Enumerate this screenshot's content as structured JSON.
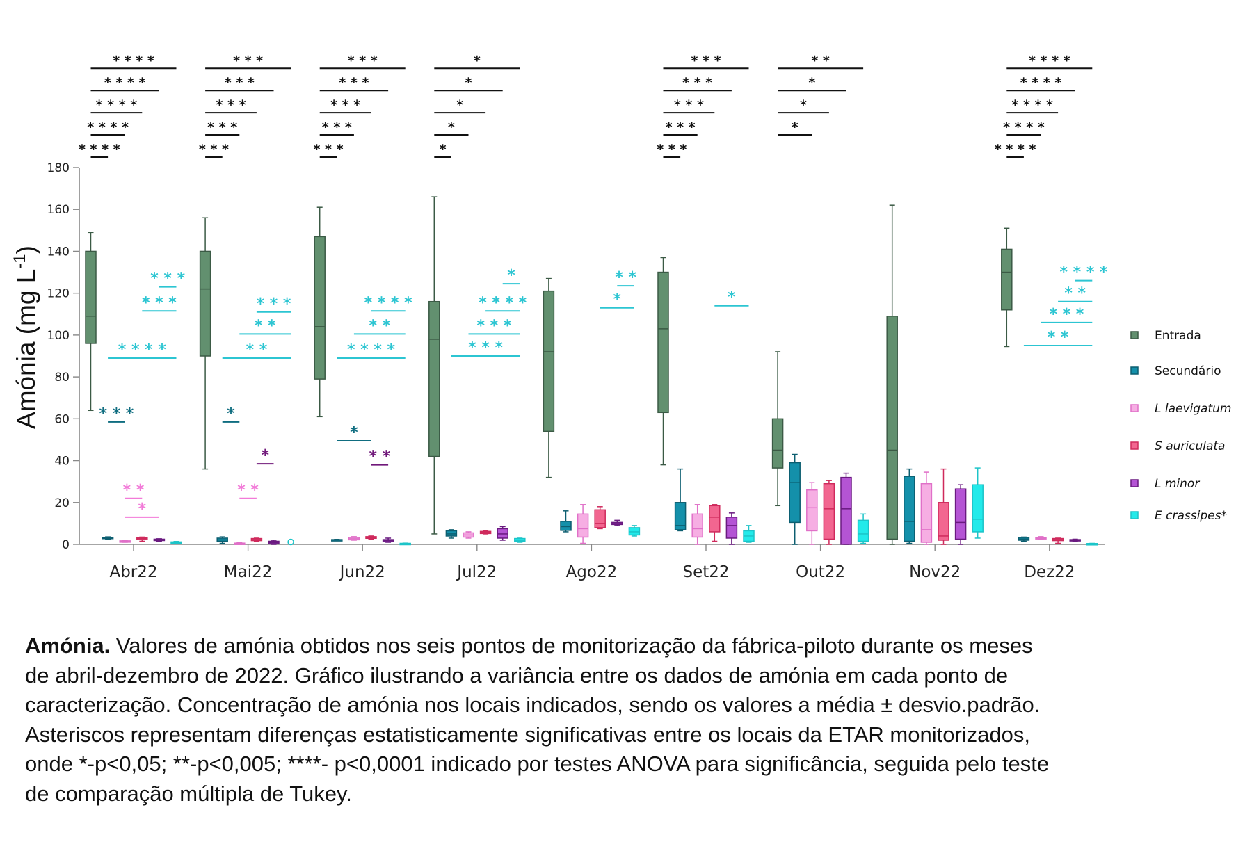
{
  "chart_data": {
    "type": "box",
    "title": "",
    "ylabel_main": "Amónia (mg L",
    "ylabel_sup": "-1",
    "ylabel_close": ")",
    "xlabel": "",
    "ylim": [
      0,
      180
    ],
    "yticks": [
      0,
      20,
      40,
      60,
      80,
      100,
      120,
      140,
      160,
      180
    ],
    "categories": [
      "Abr22",
      "Mai22",
      "Jun22",
      "Jul22",
      "Ago22",
      "Set22",
      "Out22",
      "Nov22",
      "Dez22"
    ],
    "legend_position": "right",
    "series": [
      {
        "name": "Entrada",
        "italic": false,
        "color": "#62906f",
        "stroke": "#3b5a45",
        "boxes": [
          [
            64,
            96,
            109,
            140,
            149
          ],
          [
            36,
            90,
            122,
            140,
            156
          ],
          [
            61,
            79,
            104,
            147,
            161
          ],
          [
            5,
            42,
            98,
            116,
            166
          ],
          [
            32,
            54,
            92,
            121,
            127
          ],
          [
            38,
            63,
            103,
            130,
            137
          ],
          [
            18.5,
            36.5,
            45,
            60,
            92
          ],
          [
            0,
            2.5,
            45,
            109,
            162
          ],
          [
            94.5,
            112,
            130,
            141,
            151
          ]
        ]
      },
      {
        "name": "Secundário",
        "italic": false,
        "color": "#1490aa",
        "stroke": "#0c5e70",
        "boxes": [
          [
            2.5,
            2.8,
            3,
            3.4,
            3.6
          ],
          [
            0.5,
            1.5,
            2.2,
            3,
            3.6
          ],
          [
            2,
            2.1,
            2.2,
            2.3,
            2.4
          ],
          [
            3,
            4,
            5,
            6.5,
            7
          ],
          [
            6,
            6.7,
            8.5,
            11,
            16
          ],
          [
            6.5,
            7,
            9,
            20,
            36
          ],
          [
            0,
            10.5,
            29.5,
            39,
            43
          ],
          [
            0.5,
            1.5,
            11,
            32.5,
            36
          ],
          [
            1.5,
            2,
            2.6,
            3.3,
            3.5
          ]
        ]
      },
      {
        "name": "L laevigatum",
        "italic": true,
        "color": "#f6aee3",
        "stroke": "#e070c8",
        "boxes": [
          [
            1,
            1.2,
            1.5,
            1.7,
            1.8
          ],
          [
            0,
            0.2,
            0.4,
            0.6,
            0.8
          ],
          [
            2,
            2.2,
            2.7,
            3.3,
            3.7
          ],
          [
            3,
            3.5,
            4.5,
            5.5,
            6
          ],
          [
            0.5,
            3.5,
            7.5,
            14.5,
            19
          ],
          [
            0,
            3.5,
            7.5,
            14.5,
            19
          ],
          [
            0,
            6.5,
            17.5,
            26,
            29.5
          ],
          [
            0,
            1,
            7,
            29,
            34.5
          ],
          [
            2.3,
            2.6,
            3,
            3.4,
            3.7
          ]
        ]
      },
      {
        "name": "S auriculata",
        "italic": true,
        "color": "#f26690",
        "stroke": "#cf2a5c",
        "boxes": [
          [
            1.5,
            2.3,
            2.8,
            3.2,
            3.5
          ],
          [
            1.5,
            1.8,
            2.3,
            2.8,
            3
          ],
          [
            2.5,
            2.9,
            3.3,
            3.7,
            4
          ],
          [
            5,
            5.2,
            5.8,
            6.2,
            6.5
          ],
          [
            7.5,
            8,
            10,
            16.5,
            18
          ],
          [
            1.5,
            6,
            13,
            18.5,
            19
          ],
          [
            0,
            2.5,
            17,
            29,
            30.5
          ],
          [
            0,
            2,
            4,
            20,
            36
          ],
          [
            0.5,
            1.8,
            2.3,
            2.8,
            3
          ]
        ]
      },
      {
        "name": "L minor",
        "italic": true,
        "color": "#b454d4",
        "stroke": "#6a1a80",
        "boxes": [
          [
            1.5,
            1.9,
            2.2,
            2.5,
            2.7
          ],
          [
            0,
            0.3,
            0.8,
            1.5,
            2
          ],
          [
            1,
            1.3,
            1.8,
            2.3,
            3
          ],
          [
            2,
            3,
            5,
            7.5,
            8.5
          ],
          [
            9,
            9.5,
            10,
            10.5,
            11.5
          ],
          [
            0,
            3,
            9,
            13,
            15
          ],
          [
            0,
            0,
            17,
            32,
            34
          ],
          [
            0,
            2.5,
            10.5,
            26.5,
            28.5
          ],
          [
            1.3,
            1.7,
            2,
            2.3,
            2.5
          ]
        ]
      },
      {
        "name": "E crassipes*",
        "italic": true,
        "color": "#22eaea",
        "stroke": "#1cc4c8",
        "boxes": [
          [
            0.3,
            0.6,
            0.9,
            1.2,
            1.4
          ],
          null,
          [
            0.2,
            0.3,
            0.4,
            0.5,
            0.6
          ],
          [
            1,
            1.5,
            2,
            2.8,
            3
          ],
          [
            4,
            4.5,
            6,
            8,
            9
          ],
          [
            1,
            1.5,
            4,
            6.5,
            9
          ],
          [
            0.5,
            1.5,
            5,
            11.5,
            14.5
          ],
          [
            3,
            6,
            12,
            28.5,
            36.5
          ],
          [
            0.1,
            0.2,
            0.3,
            0.4,
            0.5
          ]
        ]
      }
    ],
    "outliers": [
      {
        "series": 5,
        "month": 1,
        "value": 0.5
      }
    ],
    "sig_colors": {
      "black": "#111111",
      "teal": "#0f6d80",
      "cyan": "#2cc5d2",
      "pink": "#f27ad8",
      "purple": "#70187a"
    },
    "significance_vs_entrada": [
      {
        "month": 0,
        "to": 1,
        "level": 1,
        "label": "****"
      },
      {
        "month": 0,
        "to": 2,
        "level": 2,
        "label": "****"
      },
      {
        "month": 0,
        "to": 3,
        "level": 3,
        "label": "****"
      },
      {
        "month": 0,
        "to": 4,
        "level": 4,
        "label": "****"
      },
      {
        "month": 0,
        "to": 5,
        "level": 5,
        "label": "****"
      },
      {
        "month": 1,
        "to": 1,
        "level": 1,
        "label": "***"
      },
      {
        "month": 1,
        "to": 2,
        "level": 2,
        "label": "***"
      },
      {
        "month": 1,
        "to": 3,
        "level": 3,
        "label": "***"
      },
      {
        "month": 1,
        "to": 4,
        "level": 4,
        "label": "***"
      },
      {
        "month": 1,
        "to": 5,
        "level": 5,
        "label": "***"
      },
      {
        "month": 2,
        "to": 1,
        "level": 1,
        "label": "***"
      },
      {
        "month": 2,
        "to": 2,
        "level": 2,
        "label": "***"
      },
      {
        "month": 2,
        "to": 3,
        "level": 3,
        "label": "***"
      },
      {
        "month": 2,
        "to": 4,
        "level": 4,
        "label": "***"
      },
      {
        "month": 2,
        "to": 5,
        "level": 5,
        "label": "***"
      },
      {
        "month": 3,
        "to": 1,
        "level": 1,
        "label": "*"
      },
      {
        "month": 3,
        "to": 2,
        "level": 2,
        "label": "*"
      },
      {
        "month": 3,
        "to": 3,
        "level": 3,
        "label": "*"
      },
      {
        "month": 3,
        "to": 4,
        "level": 4,
        "label": "*"
      },
      {
        "month": 3,
        "to": 5,
        "level": 5,
        "label": "*"
      },
      {
        "month": 5,
        "to": 1,
        "level": 1,
        "label": "***"
      },
      {
        "month": 5,
        "to": 2,
        "level": 2,
        "label": "***"
      },
      {
        "month": 5,
        "to": 3,
        "level": 3,
        "label": "***"
      },
      {
        "month": 5,
        "to": 4,
        "level": 4,
        "label": "***"
      },
      {
        "month": 5,
        "to": 5,
        "level": 5,
        "label": "***"
      },
      {
        "month": 6,
        "to": 2,
        "level": 2,
        "label": "*"
      },
      {
        "month": 6,
        "to": 3,
        "level": 3,
        "label": "*"
      },
      {
        "month": 6,
        "to": 4,
        "level": 4,
        "label": "*"
      },
      {
        "month": 6,
        "to": 5,
        "level": 5,
        "label": "**"
      },
      {
        "month": 8,
        "to": 1,
        "level": 1,
        "label": "****"
      },
      {
        "month": 8,
        "to": 2,
        "level": 2,
        "label": "****"
      },
      {
        "month": 8,
        "to": 3,
        "level": 3,
        "label": "****"
      },
      {
        "month": 8,
        "to": 4,
        "level": 4,
        "label": "****"
      },
      {
        "month": 8,
        "to": 5,
        "level": 5,
        "label": "****"
      }
    ],
    "significance_other": [
      {
        "month": 0,
        "from": 1,
        "to": 2,
        "y": 58.5,
        "label": "***",
        "color": "teal"
      },
      {
        "month": 0,
        "from": 1,
        "to": 5,
        "y": 89,
        "label": "****",
        "color": "cyan"
      },
      {
        "month": 0,
        "from": 3,
        "to": 5,
        "y": 111.5,
        "label": "***",
        "color": "cyan"
      },
      {
        "month": 0,
        "from": 4,
        "to": 5,
        "y": 123,
        "label": "***",
        "color": "cyan"
      },
      {
        "month": 0,
        "from": 2,
        "to": 3,
        "y": 22,
        "label": "**",
        "color": "pink"
      },
      {
        "month": 0,
        "from": 2,
        "to": 4,
        "y": 13,
        "label": "*",
        "color": "pink"
      },
      {
        "month": 1,
        "from": 1,
        "to": 2,
        "y": 58.5,
        "label": "*",
        "color": "teal"
      },
      {
        "month": 1,
        "from": 1,
        "to": 5,
        "y": 89,
        "label": "**",
        "color": "cyan"
      },
      {
        "month": 1,
        "from": 2,
        "to": 5,
        "y": 100.5,
        "label": "**",
        "color": "cyan"
      },
      {
        "month": 1,
        "from": 3,
        "to": 5,
        "y": 111,
        "label": "***",
        "color": "cyan"
      },
      {
        "month": 1,
        "from": 3,
        "to": 4,
        "y": 38.5,
        "label": "*",
        "color": "purple"
      },
      {
        "month": 1,
        "from": 2,
        "to": 3,
        "y": 22,
        "label": "**",
        "color": "pink"
      },
      {
        "month": 2,
        "from": 1,
        "to": 3,
        "y": 49.5,
        "label": "*",
        "color": "teal"
      },
      {
        "month": 2,
        "from": 1,
        "to": 5,
        "y": 89,
        "label": "****",
        "color": "cyan"
      },
      {
        "month": 2,
        "from": 2,
        "to": 5,
        "y": 100.5,
        "label": "**",
        "color": "cyan"
      },
      {
        "month": 2,
        "from": 3,
        "to": 5,
        "y": 111.5,
        "label": "****",
        "color": "cyan"
      },
      {
        "month": 2,
        "from": 3,
        "to": 4,
        "y": 38,
        "label": "**",
        "color": "purple"
      },
      {
        "month": 3,
        "from": 1,
        "to": 5,
        "y": 90,
        "label": "***",
        "color": "cyan"
      },
      {
        "month": 3,
        "from": 2,
        "to": 5,
        "y": 100.5,
        "label": "***",
        "color": "cyan"
      },
      {
        "month": 3,
        "from": 3,
        "to": 5,
        "y": 111.5,
        "label": "****",
        "color": "cyan"
      },
      {
        "month": 3,
        "from": 4,
        "to": 5,
        "y": 124.5,
        "label": "*",
        "color": "cyan"
      },
      {
        "month": 4,
        "from": 3,
        "to": 5,
        "y": 113,
        "label": "*",
        "color": "cyan"
      },
      {
        "month": 4,
        "from": 4,
        "to": 5,
        "y": 123.5,
        "label": "**",
        "color": "cyan"
      },
      {
        "month": 5,
        "from": 3,
        "to": 5,
        "y": 114,
        "label": "*",
        "color": "cyan"
      },
      {
        "month": 8,
        "from": 1,
        "to": 5,
        "y": 95,
        "label": "**",
        "color": "cyan"
      },
      {
        "month": 8,
        "from": 2,
        "to": 5,
        "y": 106,
        "label": "***",
        "color": "cyan"
      },
      {
        "month": 8,
        "from": 3,
        "to": 5,
        "y": 116,
        "label": "**",
        "color": "cyan"
      },
      {
        "month": 8,
        "from": 4,
        "to": 5,
        "y": 126,
        "label": "****",
        "color": "cyan"
      }
    ]
  },
  "caption": {
    "bold": "Amónia.",
    "lines": [
      " Valores de amónia obtidos nos seis pontos de monitorização da fábrica-piloto durante os meses",
      "de abril-dezembro de 2022. Gráfico ilustrando a variância entre os dados de amónia em cada ponto de",
      "caracterização. Concentração de amónia nos locais indicados, sendo os valores a média ± desvio.padrão.",
      "Asteriscos representam diferenças estatisticamente significativas entre os locais da ETAR monitorizados,",
      "onde *-p<0,05; **-p<0,005; ****- p<0,0001 indicado por testes ANOVA para significância, seguida pelo teste",
      "de comparação múltipla de Tukey."
    ]
  }
}
